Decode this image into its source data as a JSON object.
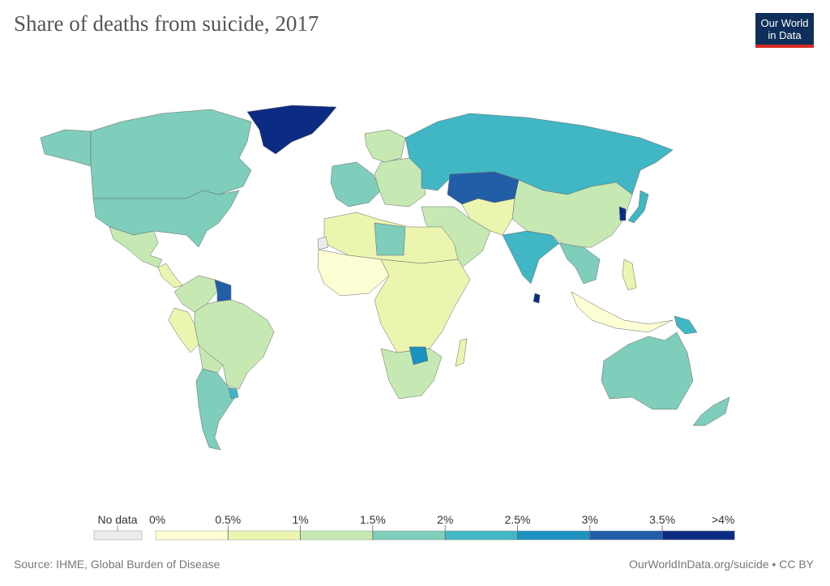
{
  "title": "Share of deaths from suicide, 2017",
  "logo": {
    "line1": "Our World",
    "line2": "in Data"
  },
  "footer": {
    "source": "Source: IHME, Global Burden of Disease",
    "url": "OurWorldInData.org/suicide • CC BY"
  },
  "chart_data": {
    "type": "choropleth",
    "title": "Share of deaths from suicide, 2017",
    "unit": "%",
    "legend": {
      "no_data_label": "No data",
      "no_data_color": "#ececec",
      "tick_labels": [
        "0%",
        "0.5%",
        "1%",
        "1.5%",
        "2%",
        "2.5%",
        "3%",
        "3.5%",
        ">4%"
      ],
      "bins": [
        {
          "range": [
            0,
            0.5
          ],
          "color": "#fefed4"
        },
        {
          "range": [
            0.5,
            1
          ],
          "color": "#ebf5b0"
        },
        {
          "range": [
            1,
            1.5
          ],
          "color": "#c6e9b4"
        },
        {
          "range": [
            1.5,
            2
          ],
          "color": "#7fcdbb"
        },
        {
          "range": [
            2,
            2.5
          ],
          "color": "#41b6c4"
        },
        {
          "range": [
            2.5,
            3
          ],
          "color": "#1d91c0"
        },
        {
          "range": [
            3,
            3.5
          ],
          "color": "#225ea8"
        },
        {
          "range": [
            3.5,
            4
          ],
          "color": "#0c2c84"
        }
      ]
    },
    "regions": [
      {
        "id": "greenland",
        "name": "Greenland",
        "value": 4.2
      },
      {
        "id": "alaska",
        "name": "Alaska (United States)",
        "value": 1.7
      },
      {
        "id": "canada",
        "name": "Canada",
        "value": 1.7
      },
      {
        "id": "usa",
        "name": "United States",
        "value": 1.8
      },
      {
        "id": "mexico",
        "name": "Mexico",
        "value": 1.1
      },
      {
        "id": "central-america",
        "name": "Central America",
        "value": 0.9
      },
      {
        "id": "colombia-venezuela",
        "name": "Colombia / Venezuela",
        "value": 1.0
      },
      {
        "id": "guyana-suriname",
        "name": "Guyana / Suriname",
        "value": 3.3
      },
      {
        "id": "peru",
        "name": "Peru",
        "value": 0.6
      },
      {
        "id": "brazil",
        "name": "Brazil",
        "value": 1.1
      },
      {
        "id": "bolivia",
        "name": "Bolivia",
        "value": 1.2
      },
      {
        "id": "argentina-chile",
        "name": "Argentina / Chile",
        "value": 1.6
      },
      {
        "id": "uruguay",
        "name": "Uruguay",
        "value": 2.4
      },
      {
        "id": "europe-west",
        "name": "Western Europe",
        "value": 1.6
      },
      {
        "id": "europe-east",
        "name": "Eastern Europe",
        "value": 1.3
      },
      {
        "id": "scandinavia",
        "name": "Scandinavia",
        "value": 1.4
      },
      {
        "id": "russia",
        "name": "Russia",
        "value": 2.3
      },
      {
        "id": "kazakhstan",
        "name": "Kazakhstan",
        "value": 3.2
      },
      {
        "id": "china-mongolia",
        "name": "China / Mongolia",
        "value": 1.3
      },
      {
        "id": "korea",
        "name": "South Korea",
        "value": 4.1
      },
      {
        "id": "japan",
        "name": "Japan",
        "value": 2.2
      },
      {
        "id": "middle-east",
        "name": "Middle East",
        "value": 1.1
      },
      {
        "id": "central-asia",
        "name": "Central Asia / Iran",
        "value": 0.8
      },
      {
        "id": "india",
        "name": "India",
        "value": 2.4
      },
      {
        "id": "sri-lanka",
        "name": "Sri Lanka",
        "value": 4.0
      },
      {
        "id": "southeast-asia",
        "name": "Southeast Asia",
        "value": 1.5
      },
      {
        "id": "indonesia",
        "name": "Indonesia",
        "value": 0.4
      },
      {
        "id": "philippines",
        "name": "Philippines",
        "value": 0.7
      },
      {
        "id": "north-africa",
        "name": "North Africa",
        "value": 0.7
      },
      {
        "id": "libya",
        "name": "Libya",
        "value": 1.6
      },
      {
        "id": "west-africa",
        "name": "West Africa",
        "value": 0.4
      },
      {
        "id": "central-east-africa",
        "name": "Central & East Africa",
        "value": 0.8
      },
      {
        "id": "southern-africa",
        "name": "Southern Africa",
        "value": 1.1
      },
      {
        "id": "zimbabwe",
        "name": "Zimbabwe",
        "value": 2.6
      },
      {
        "id": "madagascar",
        "name": "Madagascar",
        "value": 0.8
      },
      {
        "id": "australia",
        "name": "Australia",
        "value": 1.8
      },
      {
        "id": "papua-new-guinea",
        "name": "Papua New Guinea",
        "value": 2.3
      },
      {
        "id": "new-zealand",
        "name": "New Zealand",
        "value": 1.7
      },
      {
        "id": "western-sahara",
        "name": "Western Sahara",
        "value": null
      }
    ]
  }
}
